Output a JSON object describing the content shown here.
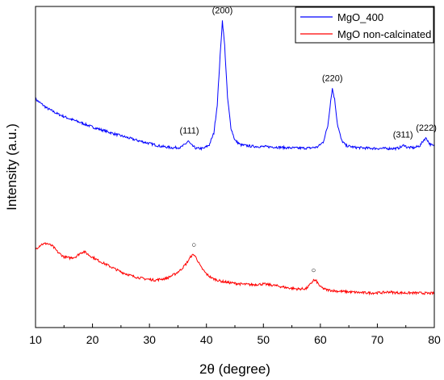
{
  "chart_data": {
    "type": "line",
    "title": "",
    "xlabel": "2θ (degree)",
    "ylabel": "Intensity (a.u.)",
    "xlim": [
      10,
      80
    ],
    "x_ticks": [
      "10",
      "20",
      "30",
      "40",
      "50",
      "60",
      "70",
      "80"
    ],
    "y_ticks_labeled": false,
    "grid": false,
    "legend_position": "top-right",
    "series": [
      {
        "name": "MgO_400",
        "color": "#0000ff",
        "points": [
          [
            10,
            6.4
          ],
          [
            12,
            6.15
          ],
          [
            14,
            5.98
          ],
          [
            16,
            5.85
          ],
          [
            18,
            5.74
          ],
          [
            20,
            5.62
          ],
          [
            22,
            5.52
          ],
          [
            24,
            5.42
          ],
          [
            26,
            5.33
          ],
          [
            28,
            5.24
          ],
          [
            30,
            5.16
          ],
          [
            32,
            5.08
          ],
          [
            34,
            5.04
          ],
          [
            35.5,
            5.05
          ],
          [
            36.3,
            5.14
          ],
          [
            36.8,
            5.23
          ],
          [
            37.3,
            5.12
          ],
          [
            38.2,
            5.02
          ],
          [
            39.5,
            5.02
          ],
          [
            40.5,
            5.12
          ],
          [
            41.3,
            5.45
          ],
          [
            41.9,
            6.25
          ],
          [
            42.4,
            7.6
          ],
          [
            42.8,
            8.6
          ],
          [
            43.2,
            7.9
          ],
          [
            43.7,
            6.45
          ],
          [
            44.3,
            5.6
          ],
          [
            45,
            5.25
          ],
          [
            46,
            5.12
          ],
          [
            48,
            5.08
          ],
          [
            50,
            5.07
          ],
          [
            52,
            5.06
          ],
          [
            54,
            5.04
          ],
          [
            56,
            5.03
          ],
          [
            58,
            5.03
          ],
          [
            59.5,
            5.06
          ],
          [
            60.5,
            5.2
          ],
          [
            61.3,
            5.65
          ],
          [
            61.8,
            6.35
          ],
          [
            62.1,
            6.7
          ],
          [
            62.5,
            6.4
          ],
          [
            63,
            5.7
          ],
          [
            63.7,
            5.25
          ],
          [
            64.5,
            5.1
          ],
          [
            66,
            5.05
          ],
          [
            68,
            5.03
          ],
          [
            70,
            5.02
          ],
          [
            72,
            5.02
          ],
          [
            73.5,
            5.02
          ],
          [
            74.3,
            5.07
          ],
          [
            74.7,
            5.12
          ],
          [
            75.2,
            5.05
          ],
          [
            76.5,
            5.04
          ],
          [
            77.5,
            5.1
          ],
          [
            78.2,
            5.27
          ],
          [
            78.6,
            5.31
          ],
          [
            79.2,
            5.14
          ],
          [
            80,
            5.08
          ]
        ]
      },
      {
        "name": "MgO non-calcinated",
        "color": "#ff0000",
        "points": [
          [
            10,
            2.2
          ],
          [
            11,
            2.33
          ],
          [
            12,
            2.36
          ],
          [
            13,
            2.28
          ],
          [
            14,
            2.1
          ],
          [
            15,
            1.98
          ],
          [
            16,
            1.95
          ],
          [
            17,
            1.98
          ],
          [
            18,
            2.1
          ],
          [
            18.5,
            2.13
          ],
          [
            19.5,
            2.02
          ],
          [
            21,
            1.88
          ],
          [
            23,
            1.72
          ],
          [
            25,
            1.56
          ],
          [
            27,
            1.44
          ],
          [
            29,
            1.37
          ],
          [
            31,
            1.33
          ],
          [
            33,
            1.38
          ],
          [
            34.5,
            1.5
          ],
          [
            35.5,
            1.62
          ],
          [
            36.5,
            1.8
          ],
          [
            37.3,
            2.0
          ],
          [
            37.8,
            2.05
          ],
          [
            38.3,
            1.93
          ],
          [
            39,
            1.7
          ],
          [
            40,
            1.5
          ],
          [
            41,
            1.38
          ],
          [
            42.5,
            1.3
          ],
          [
            44,
            1.26
          ],
          [
            46,
            1.22
          ],
          [
            48,
            1.2
          ],
          [
            50,
            1.22
          ],
          [
            52,
            1.18
          ],
          [
            54,
            1.12
          ],
          [
            56,
            1.08
          ],
          [
            57.5,
            1.09
          ],
          [
            58.3,
            1.22
          ],
          [
            58.8,
            1.33
          ],
          [
            59.3,
            1.3
          ],
          [
            60,
            1.14
          ],
          [
            61,
            1.06
          ],
          [
            63,
            1.02
          ],
          [
            65,
            1.0
          ],
          [
            67,
            0.98
          ],
          [
            69,
            0.97
          ],
          [
            71,
            0.98
          ],
          [
            72,
            1.0
          ],
          [
            73,
            0.98
          ],
          [
            75,
            0.97
          ],
          [
            77,
            0.97
          ],
          [
            79,
            0.96
          ],
          [
            80,
            0.96
          ]
        ]
      }
    ],
    "peak_labels": [
      {
        "text": "(111)",
        "x": 37.0,
        "y": 5.23,
        "series": "MgO_400"
      },
      {
        "text": "(200)",
        "x": 42.8,
        "y": 8.6,
        "series": "MgO_400"
      },
      {
        "text": "(220)",
        "x": 62.1,
        "y": 6.7,
        "series": "MgO_400"
      },
      {
        "text": "(311)",
        "x": 74.5,
        "y": 5.12,
        "series": "MgO_400"
      },
      {
        "text": "(222)",
        "x": 78.6,
        "y": 5.31,
        "series": "MgO_400"
      }
    ],
    "markers": [
      {
        "symbol": "○",
        "x": 37.8,
        "y": 2.05
      },
      {
        "symbol": "○",
        "x": 58.8,
        "y": 1.33
      }
    ]
  }
}
